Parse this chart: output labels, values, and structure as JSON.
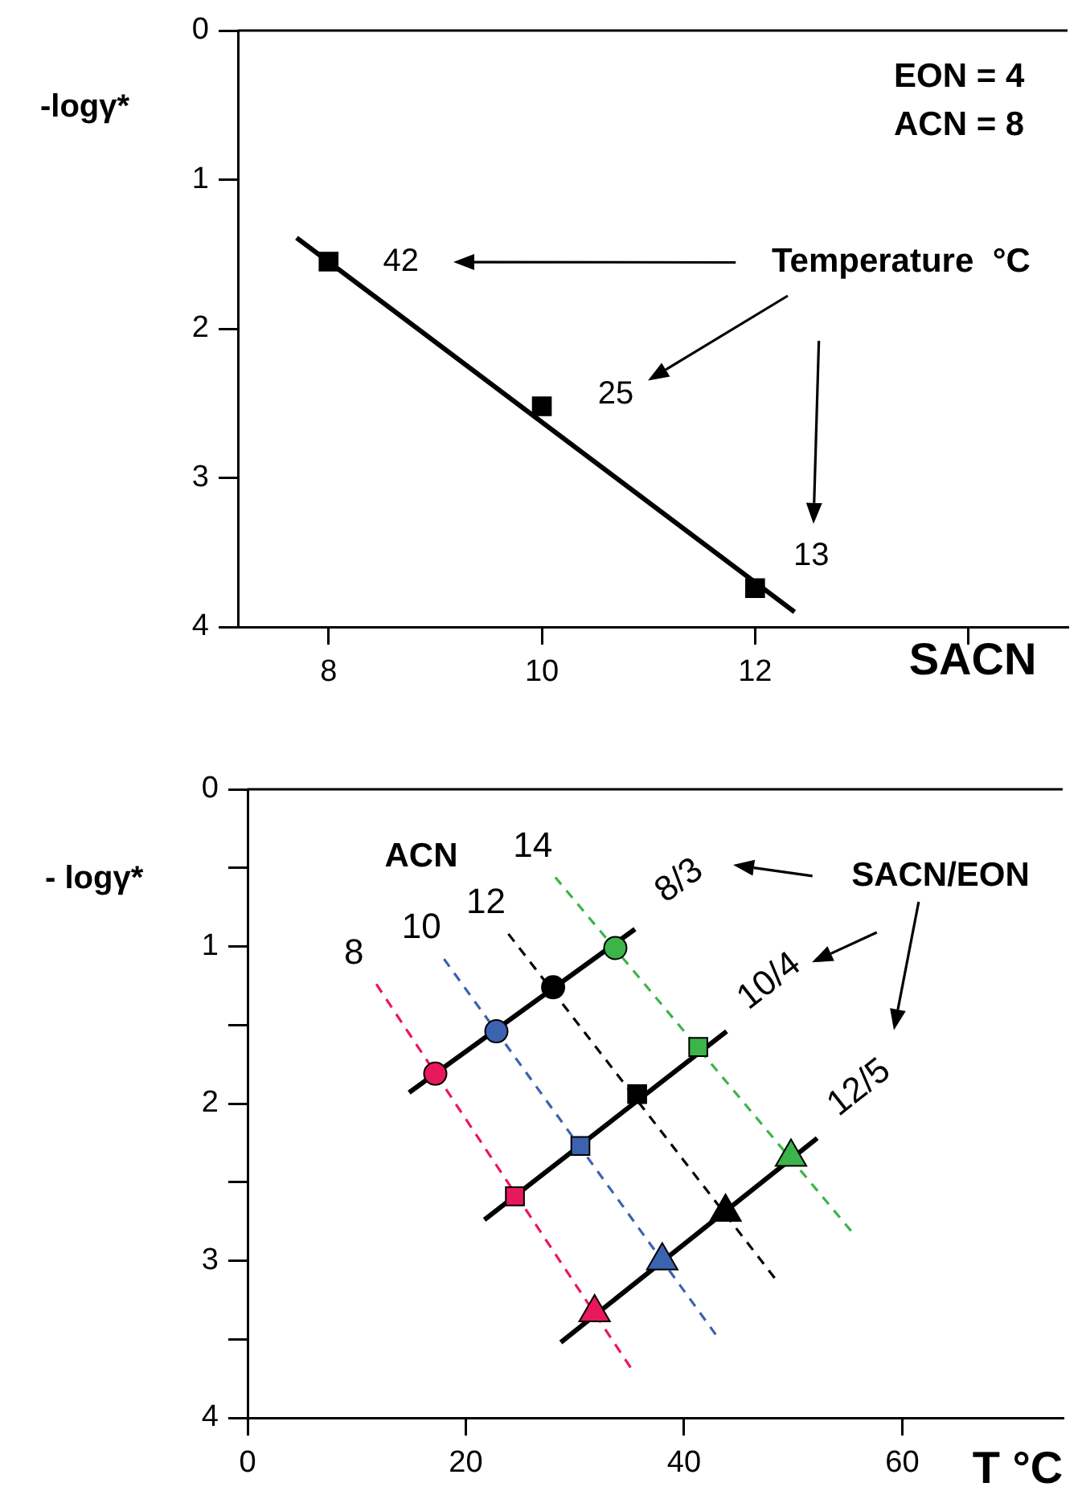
{
  "chart_data": [
    {
      "type": "line",
      "xlabel": "SACN",
      "ylabel": "-logγ*",
      "xlim": [
        7.15,
        14.93
      ],
      "xticks": [
        8,
        10,
        12,
        {
          "value": 14,
          "label": null
        }
      ],
      "ylim": [
        4,
        0
      ],
      "yticks": [
        0,
        1,
        2,
        3,
        4
      ],
      "annotations": [
        "EON = 4",
        "ACN = 8",
        "Temperature  °C",
        {
          "text": "42",
          "x": 8,
          "y": 1.55
        },
        {
          "text": "25",
          "x": 10,
          "y": 2.52
        },
        {
          "text": "13",
          "x": 12,
          "y": 3.74
        }
      ],
      "series": [
        {
          "color": "#000000",
          "marker": "none",
          "line_style": "solid",
          "x": [
            7.7,
            12.37
          ],
          "values": [
            1.39,
            3.9
          ]
        },
        {
          "type": "scatter",
          "color": "#000000",
          "marker": "square",
          "x": [
            8,
            10,
            12
          ],
          "values": [
            1.55,
            2.52,
            3.74
          ]
        }
      ]
    },
    {
      "type": "scatter",
      "xlabel": "T °C",
      "ylabel": "- logγ*",
      "xlim": [
        0,
        74.7
      ],
      "xticks": [
        0,
        20,
        40,
        60
      ],
      "ylim": [
        4,
        0
      ],
      "yticks": [
        0,
        {
          "value": 0.5,
          "label": null
        },
        1,
        {
          "value": 1.5,
          "label": null
        },
        2,
        {
          "value": 2.5,
          "label": null
        },
        3,
        {
          "value": 3.5,
          "label": null
        },
        4
      ],
      "annotations": [
        "ACN",
        "SACN/EON"
      ],
      "series": [
        {
          "name": "8",
          "type": "line",
          "line_style": "dashed",
          "marker": "none",
          "color": "#e8195a",
          "x": [
            11.8,
            35.1
          ],
          "values": [
            1.24,
            3.68
          ]
        },
        {
          "name": "10",
          "type": "line",
          "line_style": "dashed",
          "marker": "none",
          "color": "#3b63b0",
          "x": [
            18.0,
            42.9
          ],
          "values": [
            1.08,
            3.47
          ]
        },
        {
          "name": "12",
          "type": "line",
          "line_style": "dashed",
          "marker": "none",
          "color": "#000000",
          "x": [
            23.9,
            48.3
          ],
          "values": [
            0.92,
            3.11
          ]
        },
        {
          "name": "14",
          "type": "line",
          "line_style": "dashed",
          "marker": "none",
          "color": "#3cb449",
          "x": [
            28.2,
            55.3
          ],
          "values": [
            0.56,
            2.81
          ]
        },
        {
          "name": "8/3",
          "type": "line",
          "line_style": "solid",
          "marker": "none",
          "color": "#000000",
          "x": [
            14.8,
            35.5
          ],
          "values": [
            1.93,
            0.89
          ]
        },
        {
          "name": "10/4",
          "type": "line",
          "line_style": "solid",
          "marker": "none",
          "color": "#000000",
          "x": [
            21.7,
            43.9
          ],
          "values": [
            2.74,
            1.54
          ]
        },
        {
          "name": "12/5",
          "type": "line",
          "line_style": "solid",
          "marker": "none",
          "color": "#000000",
          "x": [
            28.7,
            52.2
          ],
          "values": [
            3.52,
            2.22
          ]
        },
        {
          "marker": "circle",
          "colors": [
            "#e8195a",
            "#3b63b0",
            "#000000",
            "#3cb449"
          ],
          "x": [
            17.2,
            22.8,
            28.0,
            33.7
          ],
          "values": [
            1.81,
            1.54,
            1.26,
            1.01
          ]
        },
        {
          "marker": "square",
          "colors": [
            "#e8195a",
            "#3b63b0",
            "#000000",
            "#3cb449"
          ],
          "x": [
            24.5,
            30.5,
            35.7,
            41.3
          ],
          "values": [
            2.59,
            2.27,
            1.94,
            1.64
          ]
        },
        {
          "marker": "triangle",
          "colors": [
            "#e8195a",
            "#3b63b0",
            "#000000",
            "#3cb449"
          ],
          "x": [
            31.8,
            38.0,
            43.8,
            49.8
          ],
          "values": [
            3.33,
            3.0,
            2.69,
            2.34
          ]
        }
      ]
    }
  ]
}
